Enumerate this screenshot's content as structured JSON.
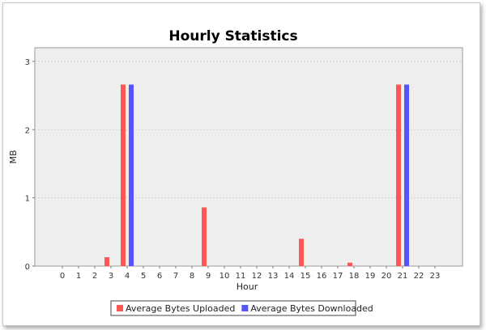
{
  "chart_data": {
    "type": "bar",
    "title": "Hourly Statistics",
    "xlabel": "Hour",
    "ylabel": "MB",
    "categories": [
      "0",
      "1",
      "2",
      "3",
      "4",
      "5",
      "6",
      "7",
      "8",
      "9",
      "10",
      "11",
      "12",
      "13",
      "14",
      "15",
      "16",
      "17",
      "18",
      "19",
      "20",
      "21",
      "22",
      "23"
    ],
    "ylim": [
      0,
      3.2
    ],
    "yticks": [
      "0",
      "1",
      "2",
      "3"
    ],
    "grid": true,
    "legend_position": "bottom",
    "series": [
      {
        "name": "Average Bytes Uploaded",
        "color": "#ff5555",
        "values": [
          0,
          0,
          0,
          0.13,
          2.66,
          0,
          0,
          0,
          0,
          0.86,
          0,
          0,
          0,
          0,
          0,
          0.4,
          0,
          0,
          0.05,
          0,
          0,
          2.66,
          0,
          0
        ]
      },
      {
        "name": "Average Bytes Downloaded",
        "color": "#5555ff",
        "values": [
          0,
          0,
          0,
          0,
          2.66,
          0,
          0,
          0,
          0,
          0,
          0,
          0,
          0,
          0,
          0,
          0,
          0,
          0,
          0,
          0,
          0,
          2.66,
          0,
          0
        ]
      }
    ]
  }
}
